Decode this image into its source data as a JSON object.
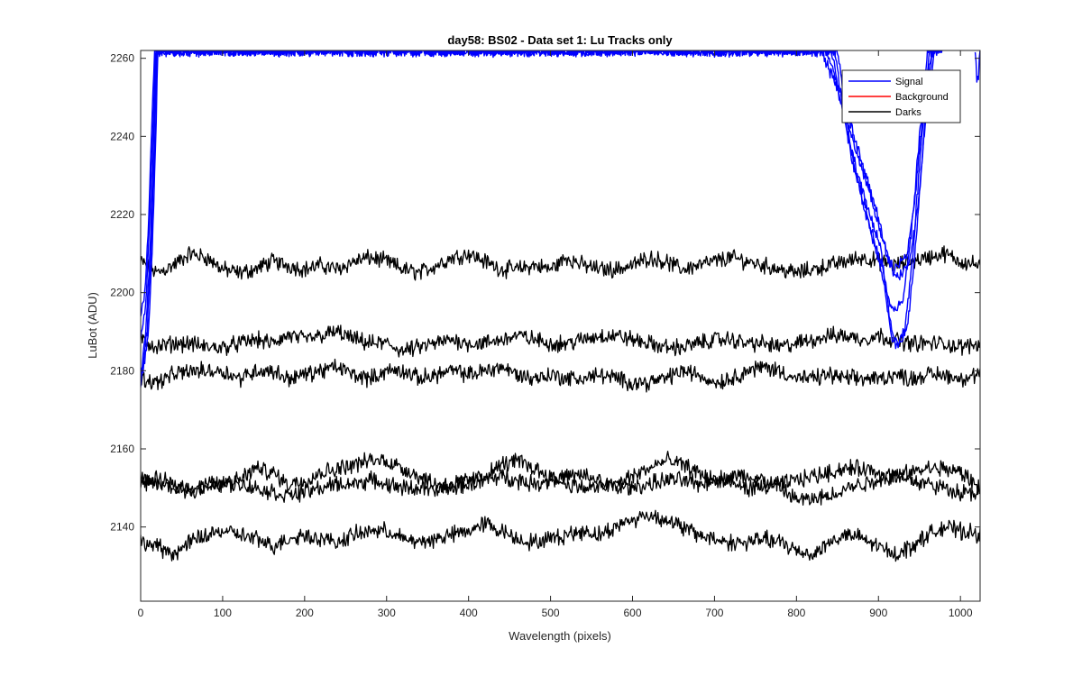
{
  "chart_data": {
    "type": "line",
    "title": "day58: BS02 - Data set 1: Lu Tracks only",
    "xlabel": "Wavelength (pixels)",
    "ylabel": "LuBot (ADU)",
    "xlim": [
      0,
      1024
    ],
    "ylim": [
      2121,
      2262
    ],
    "xticks": [
      0,
      100,
      200,
      300,
      400,
      500,
      600,
      700,
      800,
      900,
      1000
    ],
    "yticks": [
      2140,
      2160,
      2180,
      2200,
      2220,
      2240,
      2260
    ],
    "grid": false,
    "legend": {
      "location": "top-right",
      "entries": [
        {
          "label": "Signal",
          "color": "#0000ff"
        },
        {
          "label": "Background",
          "color": "#ff0000"
        },
        {
          "label": "Darks",
          "color": "#000000"
        }
      ]
    },
    "darks": [
      {
        "name": "Darks",
        "color": "#000000",
        "x": [
          0,
          20,
          40,
          60,
          80,
          100,
          120,
          140,
          160,
          180,
          200,
          220,
          240,
          260,
          280,
          300,
          320,
          340,
          360,
          380,
          400,
          420,
          440,
          460,
          480,
          500,
          520,
          540,
          560,
          580,
          600,
          620,
          640,
          660,
          680,
          700,
          720,
          740,
          760,
          780,
          800,
          820,
          840,
          860,
          880,
          900,
          920,
          940,
          960,
          980,
          1000,
          1024
        ],
        "y": [
          2208,
          2205,
          2207,
          2210,
          2209,
          2206,
          2205,
          2206,
          2208,
          2207,
          2206,
          2207,
          2206,
          2208,
          2209,
          2208,
          2206,
          2205,
          2207,
          2209,
          2210,
          2208,
          2206,
          2206,
          2207,
          2206,
          2209,
          2207,
          2206,
          2206,
          2207,
          2209,
          2208,
          2206,
          2207,
          2208,
          2209,
          2208,
          2207,
          2206,
          2205,
          2206,
          2207,
          2208,
          2209,
          2208,
          2207,
          2208,
          2209,
          2210,
          2208,
          2207
        ]
      },
      {
        "name": "Darks",
        "color": "#000000",
        "x": [
          0,
          20,
          40,
          60,
          80,
          100,
          120,
          140,
          160,
          180,
          200,
          220,
          240,
          260,
          280,
          300,
          320,
          340,
          360,
          380,
          400,
          420,
          440,
          460,
          480,
          500,
          520,
          540,
          560,
          580,
          600,
          620,
          640,
          660,
          680,
          700,
          720,
          740,
          760,
          780,
          800,
          820,
          840,
          860,
          880,
          900,
          920,
          940,
          960,
          980,
          1000,
          1024
        ],
        "y": [
          2188,
          2186,
          2187,
          2187,
          2186,
          2186,
          2187,
          2188,
          2187,
          2189,
          2188,
          2189,
          2190,
          2188,
          2187,
          2187,
          2185,
          2186,
          2187,
          2188,
          2187,
          2187,
          2188,
          2189,
          2188,
          2187,
          2187,
          2188,
          2189,
          2189,
          2188,
          2187,
          2186,
          2186,
          2187,
          2188,
          2188,
          2187,
          2187,
          2186,
          2187,
          2188,
          2189,
          2189,
          2188,
          2189,
          2188,
          2187,
          2187,
          2187,
          2186,
          2187
        ]
      },
      {
        "name": "Darks",
        "color": "#000000",
        "x": [
          0,
          20,
          40,
          60,
          80,
          100,
          120,
          140,
          160,
          180,
          200,
          220,
          240,
          260,
          280,
          300,
          320,
          340,
          360,
          380,
          400,
          420,
          440,
          460,
          480,
          500,
          520,
          540,
          560,
          580,
          600,
          620,
          640,
          660,
          680,
          700,
          720,
          740,
          760,
          780,
          800,
          820,
          840,
          860,
          880,
          900,
          920,
          940,
          960,
          980,
          1000,
          1024
        ],
        "y": [
          2178,
          2177,
          2179,
          2180,
          2180,
          2180,
          2178,
          2180,
          2180,
          2178,
          2179,
          2180,
          2181,
          2179,
          2178,
          2180,
          2180,
          2178,
          2179,
          2180,
          2179,
          2180,
          2181,
          2179,
          2178,
          2179,
          2178,
          2178,
          2179,
          2178,
          2177,
          2177,
          2178,
          2180,
          2179,
          2177,
          2178,
          2180,
          2181,
          2180,
          2178,
          2178,
          2179,
          2178,
          2178,
          2178,
          2179,
          2178,
          2179,
          2179,
          2178,
          2179
        ]
      },
      {
        "name": "Darks",
        "color": "#000000",
        "x": [
          0,
          20,
          40,
          60,
          80,
          100,
          120,
          140,
          160,
          180,
          200,
          220,
          240,
          260,
          280,
          300,
          320,
          340,
          360,
          380,
          400,
          420,
          440,
          460,
          480,
          500,
          520,
          540,
          560,
          580,
          600,
          620,
          640,
          660,
          680,
          700,
          720,
          740,
          760,
          780,
          800,
          820,
          840,
          860,
          880,
          900,
          920,
          940,
          960,
          980,
          1000,
          1024
        ],
        "y": [
          2152,
          2151,
          2150,
          2149,
          2150,
          2151,
          2152,
          2155,
          2154,
          2151,
          2152,
          2154,
          2155,
          2156,
          2157,
          2157,
          2155,
          2153,
          2151,
          2151,
          2152,
          2153,
          2156,
          2157,
          2155,
          2153,
          2151,
          2150,
          2150,
          2151,
          2153,
          2155,
          2157,
          2156,
          2154,
          2152,
          2151,
          2150,
          2150,
          2151,
          2152,
          2153,
          2154,
          2155,
          2155,
          2154,
          2153,
          2154,
          2155,
          2155,
          2154,
          2150
        ]
      },
      {
        "name": "Darks",
        "color": "#000000",
        "x": [
          0,
          20,
          40,
          60,
          80,
          100,
          120,
          140,
          160,
          180,
          200,
          220,
          240,
          260,
          280,
          300,
          320,
          340,
          360,
          380,
          400,
          420,
          440,
          460,
          480,
          500,
          520,
          540,
          560,
          580,
          600,
          620,
          640,
          660,
          680,
          700,
          720,
          740,
          760,
          780,
          800,
          820,
          840,
          860,
          880,
          900,
          920,
          940,
          960,
          980,
          1000,
          1024
        ],
        "y": [
          2151,
          2152,
          2151,
          2150,
          2151,
          2151,
          2151,
          2150,
          2149,
          2148,
          2149,
          2150,
          2151,
          2151,
          2152,
          2151,
          2150,
          2150,
          2149,
          2150,
          2151,
          2152,
          2153,
          2152,
          2151,
          2152,
          2153,
          2153,
          2152,
          2150,
          2150,
          2151,
          2152,
          2152,
          2151,
          2152,
          2153,
          2153,
          2152,
          2150,
          2147,
          2147,
          2148,
          2150,
          2151,
          2152,
          2153,
          2152,
          2151,
          2150,
          2149,
          2149
        ]
      },
      {
        "name": "Darks",
        "color": "#000000",
        "x": [
          0,
          20,
          40,
          60,
          80,
          100,
          120,
          140,
          160,
          180,
          200,
          220,
          240,
          260,
          280,
          300,
          320,
          340,
          360,
          380,
          400,
          420,
          440,
          460,
          480,
          500,
          520,
          540,
          560,
          580,
          600,
          620,
          640,
          660,
          680,
          700,
          720,
          740,
          760,
          780,
          800,
          820,
          840,
          860,
          880,
          900,
          920,
          940,
          960,
          980,
          1000,
          1024
        ],
        "y": [
          2136,
          2135,
          2133,
          2136,
          2138,
          2139,
          2138,
          2137,
          2135,
          2137,
          2138,
          2137,
          2136,
          2138,
          2139,
          2139,
          2137,
          2136,
          2137,
          2138,
          2139,
          2141,
          2139,
          2137,
          2136,
          2137,
          2138,
          2139,
          2138,
          2140,
          2142,
          2143,
          2142,
          2140,
          2138,
          2137,
          2136,
          2136,
          2137,
          2136,
          2134,
          2133,
          2136,
          2138,
          2137,
          2135,
          2133,
          2135,
          2138,
          2140,
          2139,
          2138
        ]
      }
    ],
    "signal": [
      {
        "name": "Signal",
        "color": "#0000ff",
        "x": [
          0,
          5,
          10,
          14,
          17,
          830,
          850,
          870,
          890,
          910,
          918,
          925,
          935,
          945,
          955,
          965,
          975
        ],
        "y": [
          2193,
          2200,
          2220,
          2245,
          2262,
          2262,
          2252,
          2238,
          2225,
          2210,
          2206,
          2207,
          2210,
          2225,
          2248,
          2262,
          2262
        ]
      },
      {
        "name": "Signal",
        "color": "#0000ff",
        "x": [
          0,
          6,
          11,
          15,
          18,
          836,
          856,
          876,
          896,
          914,
          921,
          928,
          938,
          948,
          958,
          968,
          978
        ],
        "y": [
          2189,
          2197,
          2218,
          2242,
          2262,
          2262,
          2250,
          2236,
          2222,
          2208,
          2204,
          2205,
          2208,
          2222,
          2245,
          2262,
          2262
        ]
      },
      {
        "name": "Signal",
        "color": "#0000ff",
        "x": [
          0,
          7,
          12,
          16,
          19,
          842,
          862,
          882,
          902,
          912,
          920,
          930,
          940,
          950,
          960,
          970
        ],
        "y": [
          2178,
          2192,
          2214,
          2240,
          2262,
          2262,
          2240,
          2225,
          2212,
          2198,
          2195,
          2198,
          2215,
          2240,
          2262,
          2262
        ]
      },
      {
        "name": "Signal",
        "color": "#0000ff",
        "x": [
          0,
          8,
          13,
          17,
          20,
          846,
          866,
          886,
          906,
          914,
          922,
          932,
          942,
          952,
          962,
          972
        ],
        "y": [
          2177,
          2190,
          2212,
          2238,
          2262,
          2262,
          2236,
          2220,
          2205,
          2190,
          2186,
          2190,
          2210,
          2238,
          2262,
          2262
        ]
      },
      {
        "name": "Signal",
        "color": "#0000ff",
        "x": [
          0,
          9,
          14,
          18,
          21,
          850,
          870,
          890,
          910,
          918,
          926,
          936,
          946,
          956,
          966
        ],
        "y": [
          2177,
          2188,
          2210,
          2236,
          2262,
          2262,
          2232,
          2216,
          2200,
          2188,
          2187,
          2192,
          2214,
          2242,
          2262
        ]
      },
      {
        "name": "Signal",
        "color": "#0000ff",
        "x": [
          1018,
          1020,
          1022,
          1024
        ],
        "y": [
          2262,
          2255,
          2256,
          2262
        ]
      }
    ]
  }
}
